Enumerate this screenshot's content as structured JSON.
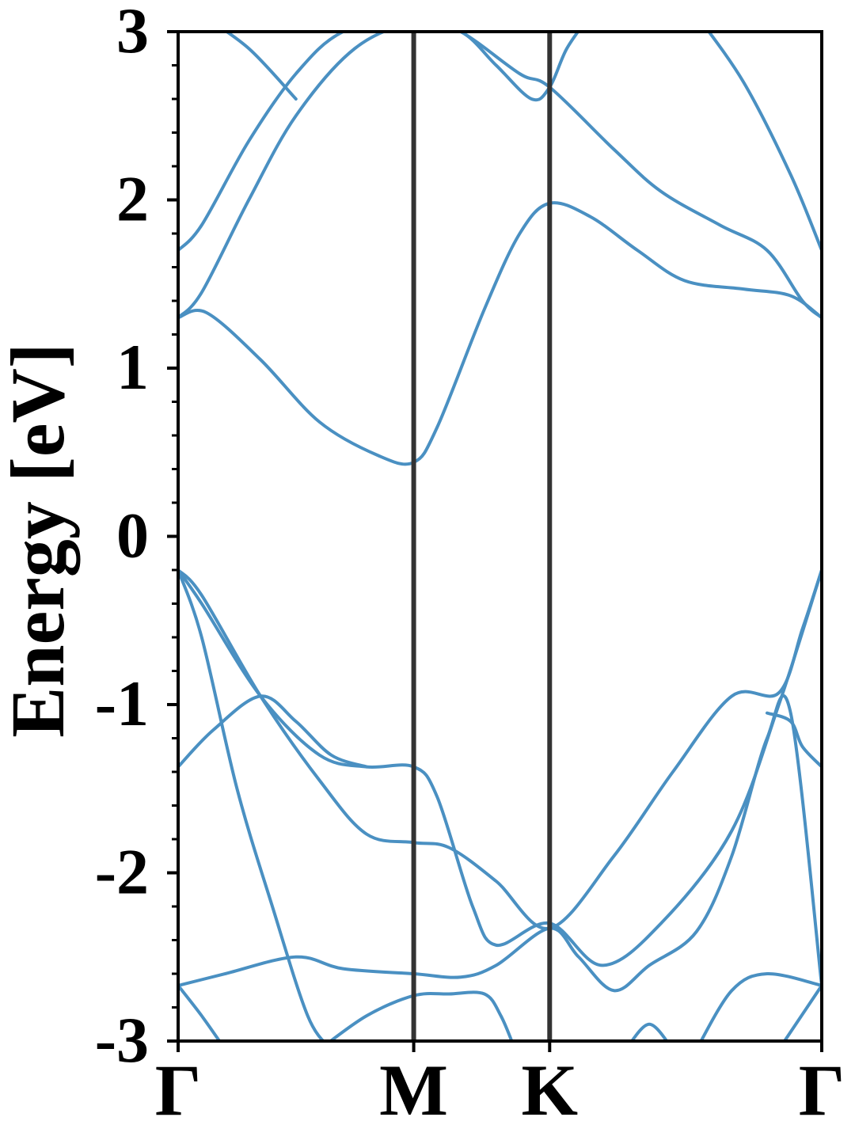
{
  "chart_data": {
    "type": "line",
    "title": "",
    "xlabel": "",
    "ylabel": "Energy [eV]",
    "ylim": [
      -3,
      3
    ],
    "yticks": [
      "3",
      "2",
      "1",
      "0",
      "-1",
      "-2",
      "-3"
    ],
    "ytick_values": [
      3,
      2,
      1,
      0,
      -1,
      -2,
      -3
    ],
    "xlim": [
      0,
      2.732
    ],
    "kpoints": [
      {
        "label": "Γ",
        "x": 0
      },
      {
        "label": "M",
        "x": 1.0
      },
      {
        "label": "K",
        "x": 1.577
      },
      {
        "label": "Γ",
        "x": 2.732
      }
    ],
    "grid": false,
    "line_color": "#4a90c2",
    "divider_color": "#333333",
    "series": [
      {
        "values": [
          [
            0,
            1.7
          ],
          [
            0.1,
            1.85
          ],
          [
            0.3,
            2.35
          ],
          [
            0.5,
            2.75
          ],
          [
            0.7,
            3.0
          ],
          [
            1.0,
            3.1
          ],
          [
            1.2,
            3.0
          ],
          [
            1.45,
            2.75
          ],
          [
            1.577,
            2.67
          ],
          [
            1.85,
            2.3
          ],
          [
            2.05,
            2.05
          ],
          [
            2.3,
            1.85
          ],
          [
            2.5,
            1.7
          ],
          [
            2.65,
            1.4
          ],
          [
            2.732,
            1.3
          ]
        ]
      },
      {
        "values": [
          [
            0,
            1.3
          ],
          [
            0.1,
            1.45
          ],
          [
            0.3,
            2.0
          ],
          [
            0.5,
            2.5
          ],
          [
            0.75,
            2.9
          ],
          [
            1.0,
            3.05
          ],
          [
            1.2,
            3.0
          ],
          [
            1.35,
            2.8
          ],
          [
            1.5,
            2.6
          ],
          [
            1.577,
            2.67
          ],
          [
            1.65,
            2.9
          ],
          [
            1.75,
            3.1
          ]
        ]
      },
      {
        "values": [
          [
            0.1,
            3.1
          ],
          [
            0.3,
            2.9
          ],
          [
            0.5,
            2.6
          ]
        ]
      },
      {
        "values": [
          [
            0,
            1.3
          ],
          [
            0.12,
            1.33
          ],
          [
            0.35,
            1.05
          ],
          [
            0.6,
            0.68
          ],
          [
            0.85,
            0.48
          ],
          [
            1.0,
            0.44
          ],
          [
            1.1,
            0.65
          ],
          [
            1.3,
            1.35
          ],
          [
            1.45,
            1.8
          ],
          [
            1.577,
            1.98
          ],
          [
            1.75,
            1.9
          ],
          [
            1.95,
            1.7
          ],
          [
            2.15,
            1.52
          ],
          [
            2.4,
            1.47
          ],
          [
            2.6,
            1.43
          ],
          [
            2.732,
            1.3
          ]
        ]
      },
      {
        "values": [
          [
            2.2,
            3.1
          ],
          [
            2.4,
            2.7
          ],
          [
            2.6,
            2.15
          ],
          [
            2.732,
            1.7
          ]
        ]
      },
      {
        "values": [
          [
            0,
            -0.2
          ],
          [
            0.1,
            -0.4
          ],
          [
            0.35,
            -0.95
          ],
          [
            0.6,
            -1.3
          ],
          [
            0.8,
            -1.37
          ],
          [
            1.0,
            -1.37
          ],
          [
            1.1,
            -1.55
          ],
          [
            1.25,
            -2.2
          ],
          [
            1.35,
            -2.43
          ],
          [
            1.577,
            -2.3
          ],
          [
            1.8,
            -2.55
          ],
          [
            2.05,
            -2.3
          ],
          [
            2.35,
            -1.75
          ],
          [
            2.55,
            -1.0
          ],
          [
            2.732,
            -0.2
          ]
        ]
      },
      {
        "values": [
          [
            0,
            -0.2
          ],
          [
            0.1,
            -0.35
          ],
          [
            0.35,
            -0.95
          ],
          [
            0.6,
            -1.45
          ],
          [
            0.8,
            -1.77
          ],
          [
            1.0,
            -1.82
          ],
          [
            1.15,
            -1.85
          ],
          [
            1.35,
            -2.05
          ],
          [
            1.577,
            -2.33
          ],
          [
            1.85,
            -1.9
          ],
          [
            2.1,
            -1.4
          ],
          [
            2.35,
            -0.95
          ],
          [
            2.55,
            -0.93
          ],
          [
            2.65,
            -0.55
          ],
          [
            2.732,
            -0.2
          ]
        ]
      },
      {
        "values": [
          [
            0,
            -1.37
          ],
          [
            0.15,
            -1.15
          ],
          [
            0.35,
            -0.95
          ],
          [
            0.5,
            -1.1
          ],
          [
            0.65,
            -1.3
          ],
          [
            0.8,
            -1.37
          ]
        ]
      },
      {
        "values": [
          [
            2.5,
            -1.05
          ],
          [
            2.6,
            -1.1
          ],
          [
            2.65,
            -1.25
          ],
          [
            2.732,
            -1.37
          ]
        ]
      },
      {
        "values": [
          [
            0,
            -0.2
          ],
          [
            0.1,
            -0.6
          ],
          [
            0.25,
            -1.5
          ],
          [
            0.4,
            -2.2
          ],
          [
            0.55,
            -2.85
          ],
          [
            0.65,
            -3.05
          ]
        ]
      },
      {
        "values": [
          [
            0,
            -2.67
          ],
          [
            0.2,
            -2.6
          ],
          [
            0.5,
            -2.5
          ],
          [
            0.7,
            -2.57
          ],
          [
            1.0,
            -2.6
          ],
          [
            1.2,
            -2.62
          ],
          [
            1.35,
            -2.55
          ],
          [
            1.577,
            -2.33
          ],
          [
            1.7,
            -2.5
          ],
          [
            1.85,
            -2.7
          ],
          [
            2.0,
            -2.55
          ],
          [
            2.2,
            -2.35
          ],
          [
            2.35,
            -1.9
          ],
          [
            2.5,
            -1.2
          ],
          [
            2.6,
            -1.05
          ],
          [
            2.732,
            -2.67
          ]
        ]
      },
      {
        "values": [
          [
            0,
            -2.67
          ],
          [
            0.1,
            -2.85
          ],
          [
            0.2,
            -3.05
          ]
        ]
      },
      {
        "values": [
          [
            0.6,
            -3.05
          ],
          [
            0.8,
            -2.85
          ],
          [
            1.0,
            -2.73
          ],
          [
            1.15,
            -2.72
          ],
          [
            1.3,
            -2.72
          ],
          [
            1.37,
            -2.85
          ],
          [
            1.43,
            -3.05
          ]
        ]
      },
      {
        "values": [
          [
            1.9,
            -3.05
          ],
          [
            2.0,
            -2.9
          ],
          [
            2.1,
            -3.05
          ]
        ]
      },
      {
        "values": [
          [
            2.2,
            -3.05
          ],
          [
            2.35,
            -2.7
          ],
          [
            2.5,
            -2.6
          ],
          [
            2.732,
            -2.67
          ]
        ]
      },
      {
        "values": [
          [
            2.55,
            -3.05
          ],
          [
            2.732,
            -2.67
          ]
        ]
      }
    ]
  }
}
